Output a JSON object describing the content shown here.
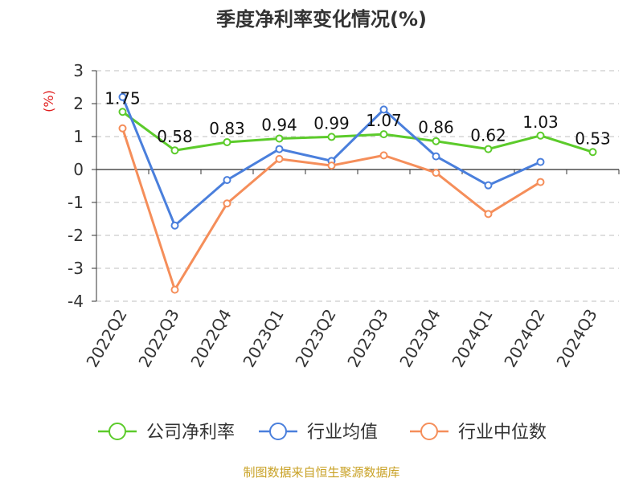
{
  "chart_data": {
    "type": "line",
    "title": "季度净利率变化情况(%)",
    "ylabel": "(%)",
    "ylim": [
      -4,
      3
    ],
    "yticks": [
      3,
      2,
      1,
      0,
      -1,
      -2,
      -3,
      -4
    ],
    "categories": [
      "2022Q2",
      "2022Q3",
      "2022Q4",
      "2023Q1",
      "2023Q2",
      "2023Q3",
      "2023Q4",
      "2024Q1",
      "2024Q2",
      "2024Q3"
    ],
    "grid": true,
    "legend_position": "bottom",
    "series": [
      {
        "name": "公司净利率",
        "color": "#5ccb2b",
        "values": [
          1.75,
          0.58,
          0.83,
          0.94,
          0.99,
          1.07,
          0.86,
          0.62,
          1.03,
          0.53
        ],
        "labels": [
          "1.75",
          "0.58",
          "0.83",
          "0.94",
          "0.99",
          "1.07",
          "0.86",
          "0.62",
          "1.03",
          "0.53"
        ]
      },
      {
        "name": "行业均值",
        "color": "#4a7fdc",
        "values": [
          2.2,
          -1.7,
          -0.32,
          0.62,
          0.26,
          1.82,
          0.4,
          -0.48,
          0.23,
          null
        ]
      },
      {
        "name": "行业中位数",
        "color": "#f58e5a",
        "values": [
          1.25,
          -3.65,
          -1.03,
          0.32,
          0.12,
          0.43,
          -0.1,
          -1.35,
          -0.38,
          null
        ]
      }
    ]
  },
  "source": "制图数据来自恒生聚源数据库",
  "colors": {
    "title": "#333333",
    "unit": "#e02020",
    "source": "#c9a227",
    "grid": "#cccccc",
    "axis": "#333333"
  }
}
